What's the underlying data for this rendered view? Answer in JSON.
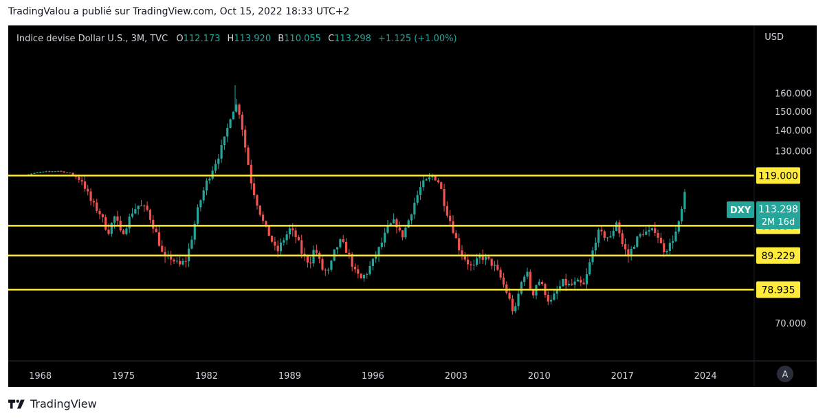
{
  "caption": "TradingValou a publié sur TradingView.com, Oct 15, 2022 18:33 UTC+2",
  "footer": {
    "brand": "TradingView"
  },
  "legend": {
    "symbol": "Indice devise Dollar U.S., 3M, TVC",
    "o_label": "O",
    "o_value": "112.173",
    "h_label": "H",
    "h_value": "113.920",
    "l_label": "B",
    "l_value": "110.055",
    "c_label": "C",
    "c_value": "113.298",
    "change": "+1.125 (+1.00%)"
  },
  "currency": "USD",
  "auto_button": "A",
  "colors": {
    "up": "#26a69a",
    "down": "#ef5350",
    "level": "#ffeb3b",
    "price_tag": "#26a69a"
  },
  "price_tag": {
    "symbol": "DXY",
    "price": "113.298",
    "countdown": "2M 16d"
  },
  "chart_data": {
    "type": "candlestick",
    "title": "",
    "y_axis_scale": "log",
    "ylim": [
      62,
      185
    ],
    "y_ticks": [
      "70.000",
      "130.000",
      "140.000",
      "150.000",
      "160.000"
    ],
    "x_ticks": [
      "1968",
      "1975",
      "1982",
      "1989",
      "1996",
      "2003",
      "2010",
      "2017",
      "2024"
    ],
    "xlim": [
      1965.8,
      2028.6
    ],
    "levels": [
      {
        "value": 119.0,
        "label": "119.000"
      },
      {
        "value": 99.35,
        "label": "99.350"
      },
      {
        "value": 89.229,
        "label": "89.229"
      },
      {
        "value": 78.935,
        "label": "78.935"
      }
    ],
    "price_path": [
      [
        1967.0,
        119.0
      ],
      [
        1968.5,
        120.5
      ],
      [
        1970.0,
        121.0
      ],
      [
        1971.0,
        120.0
      ],
      [
        1972.0,
        117.0
      ],
      [
        1972.8,
        108.0
      ],
      [
        1973.5,
        104.0
      ],
      [
        1974.2,
        97.0
      ],
      [
        1974.8,
        103.0
      ],
      [
        1975.3,
        96.0
      ],
      [
        1975.8,
        100.0
      ],
      [
        1976.3,
        105.0
      ],
      [
        1976.8,
        107.0
      ],
      [
        1977.5,
        105.0
      ],
      [
        1978.3,
        96.0
      ],
      [
        1978.9,
        88.0
      ],
      [
        1979.5,
        88.5
      ],
      [
        1980.2,
        86.0
      ],
      [
        1980.8,
        88.0
      ],
      [
        1981.3,
        96.0
      ],
      [
        1981.8,
        106.0
      ],
      [
        1982.4,
        115.0
      ],
      [
        1983.0,
        122.0
      ],
      [
        1983.6,
        129.0
      ],
      [
        1984.1,
        137.0
      ],
      [
        1984.6,
        150.0
      ],
      [
        1985.1,
        154.0
      ],
      [
        1985.4,
        145.0
      ],
      [
        1985.8,
        130.0
      ],
      [
        1986.3,
        115.0
      ],
      [
        1986.8,
        107.0
      ],
      [
        1987.3,
        100.0
      ],
      [
        1987.9,
        95.0
      ],
      [
        1988.4,
        90.0
      ],
      [
        1988.9,
        94.0
      ],
      [
        1989.5,
        98.0
      ],
      [
        1990.1,
        95.0
      ],
      [
        1990.6,
        89.0
      ],
      [
        1991.2,
        87.0
      ],
      [
        1991.6,
        92.0
      ],
      [
        1992.2,
        85.0
      ],
      [
        1992.8,
        84.0
      ],
      [
        1993.3,
        91.0
      ],
      [
        1993.8,
        94.0
      ],
      [
        1994.4,
        90.0
      ],
      [
        1995.0,
        84.0
      ],
      [
        1995.5,
        82.0
      ],
      [
        1996.0,
        84.0
      ],
      [
        1996.6,
        88.0
      ],
      [
        1997.2,
        93.0
      ],
      [
        1997.8,
        99.0
      ],
      [
        1998.4,
        101.0
      ],
      [
        1998.9,
        95.0
      ],
      [
        1999.4,
        100.0
      ],
      [
        2000.0,
        108.0
      ],
      [
        2000.6,
        115.0
      ],
      [
        2001.1,
        117.0
      ],
      [
        2001.6,
        119.0
      ],
      [
        2002.1,
        116.0
      ],
      [
        2002.6,
        106.0
      ],
      [
        2003.1,
        100.0
      ],
      [
        2003.7,
        92.0
      ],
      [
        2004.3,
        88.0
      ],
      [
        2004.9,
        85.0
      ],
      [
        2005.5,
        89.0
      ],
      [
        2006.1,
        88.0
      ],
      [
        2006.7,
        86.0
      ],
      [
        2007.3,
        82.0
      ],
      [
        2007.9,
        77.0
      ],
      [
        2008.4,
        72.0
      ],
      [
        2008.9,
        80.0
      ],
      [
        2009.4,
        85.0
      ],
      [
        2009.9,
        77.0
      ],
      [
        2010.4,
        82.0
      ],
      [
        2010.9,
        79.0
      ],
      [
        2011.4,
        75.0
      ],
      [
        2011.9,
        78.0
      ],
      [
        2012.5,
        81.0
      ],
      [
        2013.1,
        80.0
      ],
      [
        2013.7,
        81.0
      ],
      [
        2014.3,
        80.0
      ],
      [
        2014.9,
        89.0
      ],
      [
        2015.4,
        97.0
      ],
      [
        2015.9,
        96.0
      ],
      [
        2016.5,
        95.0
      ],
      [
        2017.0,
        101.0
      ],
      [
        2017.5,
        93.0
      ],
      [
        2018.0,
        89.0
      ],
      [
        2018.6,
        94.0
      ],
      [
        2019.2,
        97.0
      ],
      [
        2019.8,
        97.0
      ],
      [
        2020.3,
        98.0
      ],
      [
        2020.9,
        91.0
      ],
      [
        2021.4,
        92.0
      ],
      [
        2021.9,
        96.0
      ],
      [
        2022.2,
        99.0
      ],
      [
        2022.5,
        105.0
      ],
      [
        2022.8,
        112.0
      ],
      [
        2022.95,
        113.3
      ]
    ]
  }
}
